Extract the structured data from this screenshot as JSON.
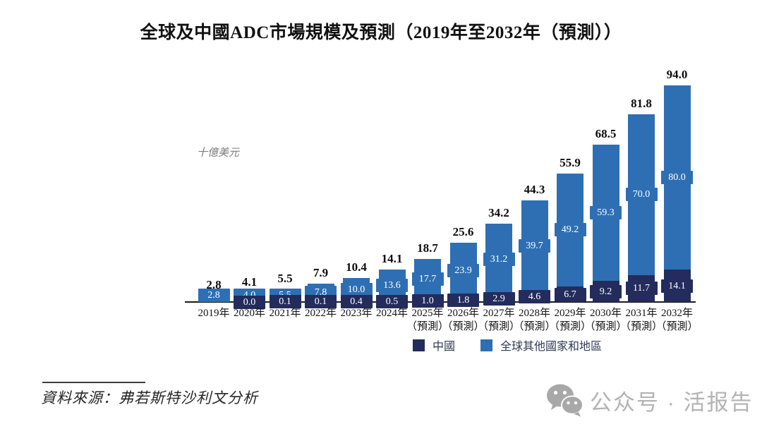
{
  "title": "全球及中國ADC市場規模及預測（2019年至2032年（預測））",
  "unit_label": "十億美元",
  "source_text": "資料來源：弗若斯特沙利文分析",
  "watermark": {
    "icon": "wechat-icon",
    "text": "公众号 · 活报告"
  },
  "colors": {
    "china": "#232C5C",
    "global_other": "#2E6FB4",
    "axis": "#1a1a1a",
    "watermark_gray": "#a8a8a8"
  },
  "chart_data": {
    "type": "bar",
    "stacked": true,
    "title": "全球及中國ADC市場規模及預測（2019年至2032年（預測））",
    "ylabel": "十億美元",
    "ylim": [
      0,
      94
    ],
    "grid": false,
    "legend_position": "bottom",
    "categories": [
      "2019年",
      "2020年",
      "2021年",
      "2022年",
      "2023年",
      "2024年",
      "2025年",
      "2026年",
      "2027年",
      "2028年",
      "2029年",
      "2030年",
      "2031年",
      "2032年"
    ],
    "forecast_suffix": "（預測）",
    "forecast_from_index": 6,
    "series": [
      {
        "name": "中國",
        "color": "#232C5C",
        "values": [
          0.0,
          0.0,
          0.1,
          0.1,
          0.4,
          0.5,
          1.0,
          1.8,
          2.9,
          4.6,
          6.7,
          9.2,
          11.7,
          14.1
        ],
        "labels": [
          "",
          "0.0",
          "0.1",
          "0.1",
          "0.4",
          "0.5",
          "1.0",
          "1.8",
          "2.9",
          "4.6",
          "6.7",
          "9.2",
          "11.7",
          "14.1"
        ]
      },
      {
        "name": "全球其他國家和地區",
        "color": "#2E6FB4",
        "values": [
          2.8,
          4.0,
          5.5,
          7.8,
          10.0,
          13.6,
          17.7,
          23.9,
          31.2,
          39.7,
          49.2,
          59.3,
          70.0,
          80.0
        ],
        "labels": [
          "2.8",
          "4.0",
          "5.5",
          "7.8",
          "10.0",
          "13.6",
          "17.7",
          "23.9",
          "31.2",
          "39.7",
          "49.2",
          "59.3",
          "70.0",
          "80.0"
        ]
      }
    ],
    "totals": [
      "2.8",
      "4.1",
      "5.5",
      "7.9",
      "10.4",
      "14.1",
      "18.7",
      "25.6",
      "34.2",
      "44.3",
      "55.9",
      "68.5",
      "81.8",
      "94.0"
    ]
  }
}
